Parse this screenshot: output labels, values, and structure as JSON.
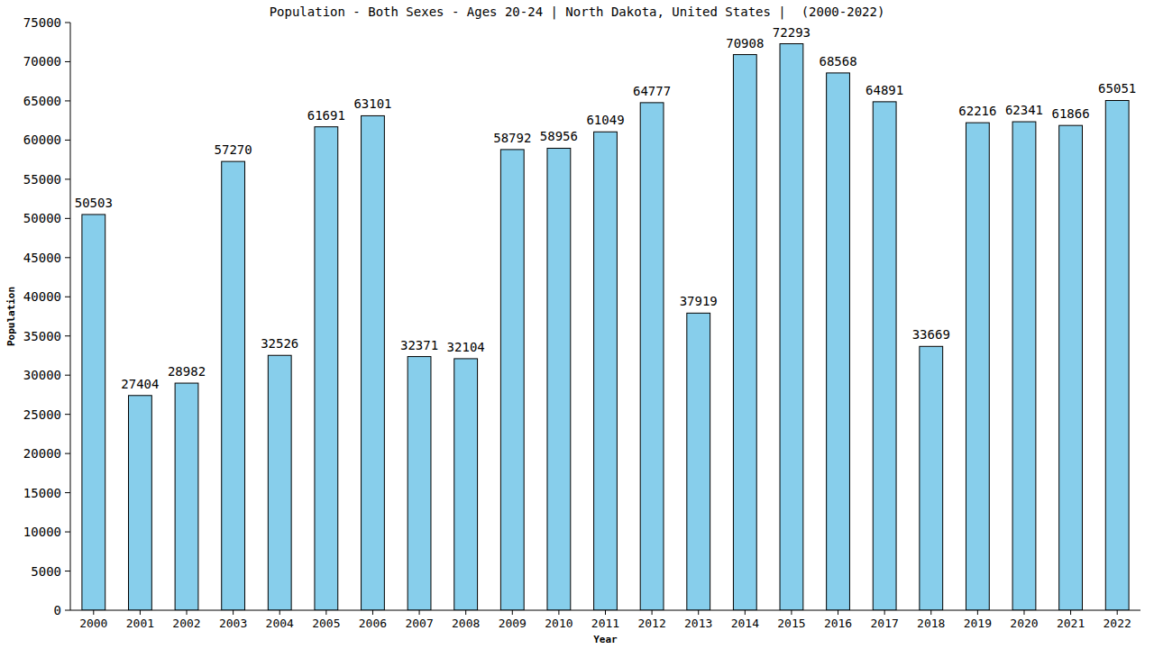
{
  "chart_data": {
    "type": "bar",
    "title": "Population - Both Sexes - Ages 20-24 | North Dakota, United States |  (2000-2022)",
    "x_label": "Year",
    "y_label": "Population",
    "categories": [
      "2000",
      "2001",
      "2002",
      "2003",
      "2004",
      "2005",
      "2006",
      "2007",
      "2008",
      "2009",
      "2010",
      "2011",
      "2012",
      "2013",
      "2014",
      "2015",
      "2016",
      "2017",
      "2018",
      "2019",
      "2020",
      "2021",
      "2022"
    ],
    "values": [
      50503,
      27404,
      28982,
      57270,
      32526,
      61691,
      63101,
      32371,
      32104,
      58792,
      58956,
      61049,
      64777,
      37919,
      70908,
      72293,
      68568,
      64891,
      33669,
      62216,
      62341,
      61866,
      65051
    ],
    "color": "#87ceeb",
    "ylim": [
      0,
      75000
    ],
    "yticks": [
      0,
      5000,
      10000,
      15000,
      20000,
      25000,
      30000,
      35000,
      40000,
      45000,
      50000,
      55000,
      60000,
      65000,
      70000,
      75000
    ],
    "grid": false,
    "data_labels": true
  }
}
